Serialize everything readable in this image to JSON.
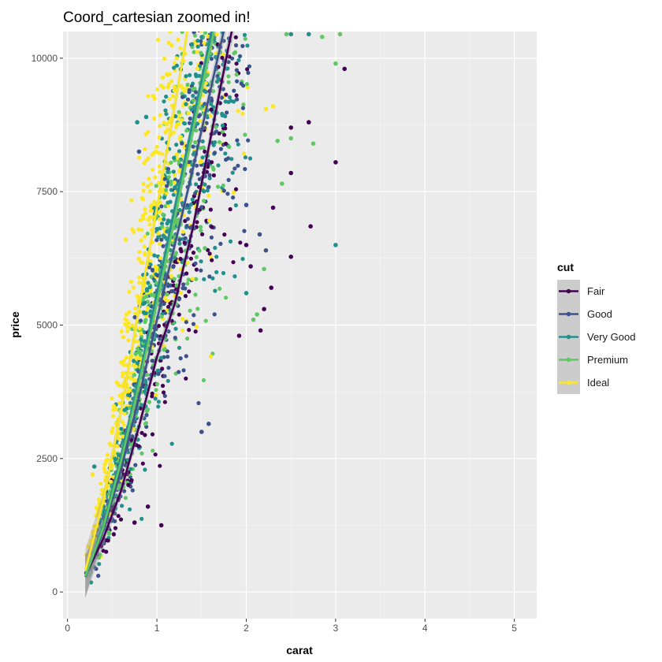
{
  "chart_data": {
    "type": "scatter",
    "title": "Coord_cartesian zoomed in!",
    "xlabel": "carat",
    "ylabel": "price",
    "xlim": [
      -0.05,
      5.25
    ],
    "ylim": [
      -500,
      10500
    ],
    "x_ticks": [
      0,
      1,
      2,
      3,
      4,
      5
    ],
    "y_ticks": [
      0,
      2500,
      5000,
      7500,
      10000
    ],
    "x_tick_labels": [
      "0",
      "1",
      "2",
      "3",
      "4",
      "5"
    ],
    "y_tick_labels": [
      "0",
      "2500",
      "5000",
      "7500",
      "10000"
    ],
    "grid": true,
    "legend_position": "right",
    "legend_title": "cut",
    "series": [
      {
        "name": "Fair",
        "color": "#440154",
        "smooth": [
          [
            0.2,
            300
          ],
          [
            0.4,
            1000
          ],
          [
            0.6,
            1900
          ],
          [
            0.8,
            3100
          ],
          [
            1.0,
            4400
          ],
          [
            1.2,
            5400
          ],
          [
            1.4,
            6800
          ],
          [
            1.6,
            8500
          ],
          [
            1.8,
            10200
          ],
          [
            1.9,
            11000
          ]
        ],
        "points": [
          [
            3.1,
            9800
          ],
          [
            3.0,
            8050
          ],
          [
            2.7,
            8800
          ],
          [
            2.5,
            8700
          ],
          [
            2.5,
            7850
          ],
          [
            2.72,
            6850
          ],
          [
            2.5,
            6280
          ],
          [
            2.3,
            7200
          ],
          [
            2.28,
            5700
          ],
          [
            2.2,
            5300
          ],
          [
            2.16,
            4900
          ],
          [
            2.05,
            6100
          ],
          [
            1.05,
            1250
          ],
          [
            0.9,
            1600
          ],
          [
            0.75,
            1300
          ],
          [
            1.92,
            4800
          ],
          [
            2.0,
            6500
          ]
        ]
      },
      {
        "name": "Good",
        "color": "#3b528b",
        "smooth": [
          [
            0.2,
            280
          ],
          [
            0.4,
            1150
          ],
          [
            0.6,
            2300
          ],
          [
            0.8,
            3650
          ],
          [
            1.0,
            5100
          ],
          [
            1.2,
            6500
          ],
          [
            1.4,
            7900
          ],
          [
            1.6,
            9400
          ],
          [
            1.8,
            10900
          ]
        ],
        "points": [
          [
            1.58,
            3150
          ],
          [
            1.5,
            3000
          ],
          [
            0.8,
            8250
          ],
          [
            2.15,
            6700
          ],
          [
            2.22,
            6400
          ],
          [
            2.0,
            7250
          ]
        ]
      },
      {
        "name": "Very Good",
        "color": "#21908c",
        "smooth": [
          [
            0.2,
            280
          ],
          [
            0.4,
            1250
          ],
          [
            0.6,
            2550
          ],
          [
            0.8,
            4000
          ],
          [
            1.0,
            5600
          ],
          [
            1.2,
            7200
          ],
          [
            1.4,
            8800
          ],
          [
            1.6,
            10400
          ],
          [
            1.7,
            11200
          ]
        ],
        "points": [
          [
            3.0,
            6500
          ],
          [
            2.5,
            10450
          ],
          [
            2.7,
            10450
          ],
          [
            0.3,
            2350
          ],
          [
            0.78,
            8800
          ],
          [
            2.0,
            5600
          ],
          [
            0.88,
            8900
          ]
        ]
      },
      {
        "name": "Premium",
        "color": "#5ec962",
        "smooth": [
          [
            0.2,
            300
          ],
          [
            0.4,
            1200
          ],
          [
            0.6,
            2450
          ],
          [
            0.8,
            3900
          ],
          [
            1.0,
            5400
          ],
          [
            1.2,
            7000
          ],
          [
            1.4,
            8600
          ],
          [
            1.6,
            10200
          ],
          [
            1.7,
            11000
          ]
        ],
        "points": [
          [
            2.45,
            10450
          ],
          [
            2.85,
            10400
          ],
          [
            3.05,
            10450
          ],
          [
            2.5,
            8500
          ],
          [
            2.35,
            8450
          ],
          [
            2.75,
            8400
          ],
          [
            3.0,
            9900
          ],
          [
            2.4,
            7650
          ],
          [
            2.2,
            6050
          ],
          [
            2.08,
            5100
          ],
          [
            2.12,
            5200
          ]
        ]
      },
      {
        "name": "Ideal",
        "color": "#fde725",
        "smooth": [
          [
            0.2,
            400
          ],
          [
            0.4,
            1700
          ],
          [
            0.6,
            3400
          ],
          [
            0.8,
            5300
          ],
          [
            1.0,
            7200
          ],
          [
            1.2,
            9100
          ],
          [
            1.35,
            10600
          ]
        ],
        "points": [
          [
            0.65,
            6600
          ],
          [
            0.6,
            4300
          ],
          [
            2.3,
            9100
          ],
          [
            2.22,
            9050
          ],
          [
            0.28,
            2200
          ],
          [
            0.62,
            4100
          ]
        ]
      }
    ]
  }
}
